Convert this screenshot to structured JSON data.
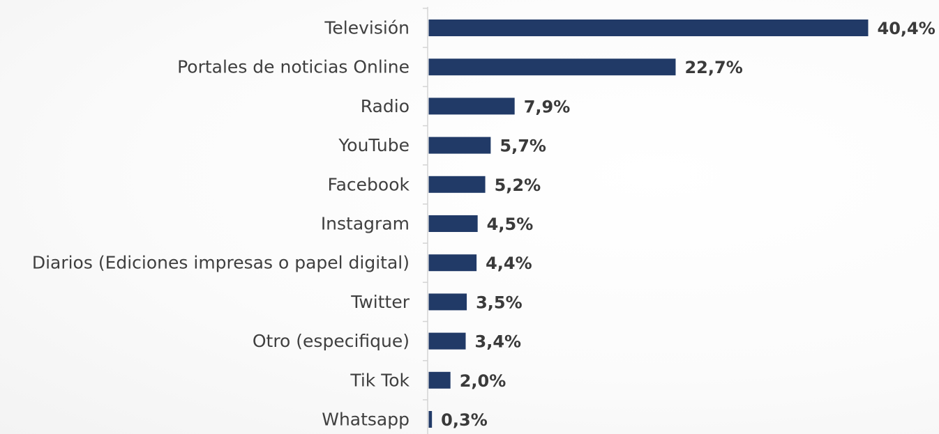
{
  "chart_data": {
    "type": "bar",
    "orientation": "horizontal",
    "categories": [
      "Televisión",
      "Portales de noticias Online",
      "Radio",
      "YouTube",
      "Facebook",
      "Instagram",
      "Diarios (Ediciones impresas o papel digital)",
      "Twitter",
      "Otro (especifique)",
      "Tik Tok",
      "Whatsapp"
    ],
    "values": [
      40.4,
      22.7,
      7.9,
      5.7,
      5.2,
      4.5,
      4.4,
      3.5,
      3.4,
      2.0,
      0.3
    ],
    "value_labels": [
      "40,4%",
      "22,7%",
      "7,9%",
      "5,7%",
      "5,2%",
      "4,5%",
      "4,4%",
      "3,5%",
      "3,4%",
      "2,0%",
      "0,3%"
    ],
    "unit": "%",
    "xlim": [
      0,
      40.4
    ],
    "grid": false,
    "legend": "none",
    "bar_color": "#213a67",
    "title": "",
    "xlabel": "",
    "ylabel": ""
  }
}
